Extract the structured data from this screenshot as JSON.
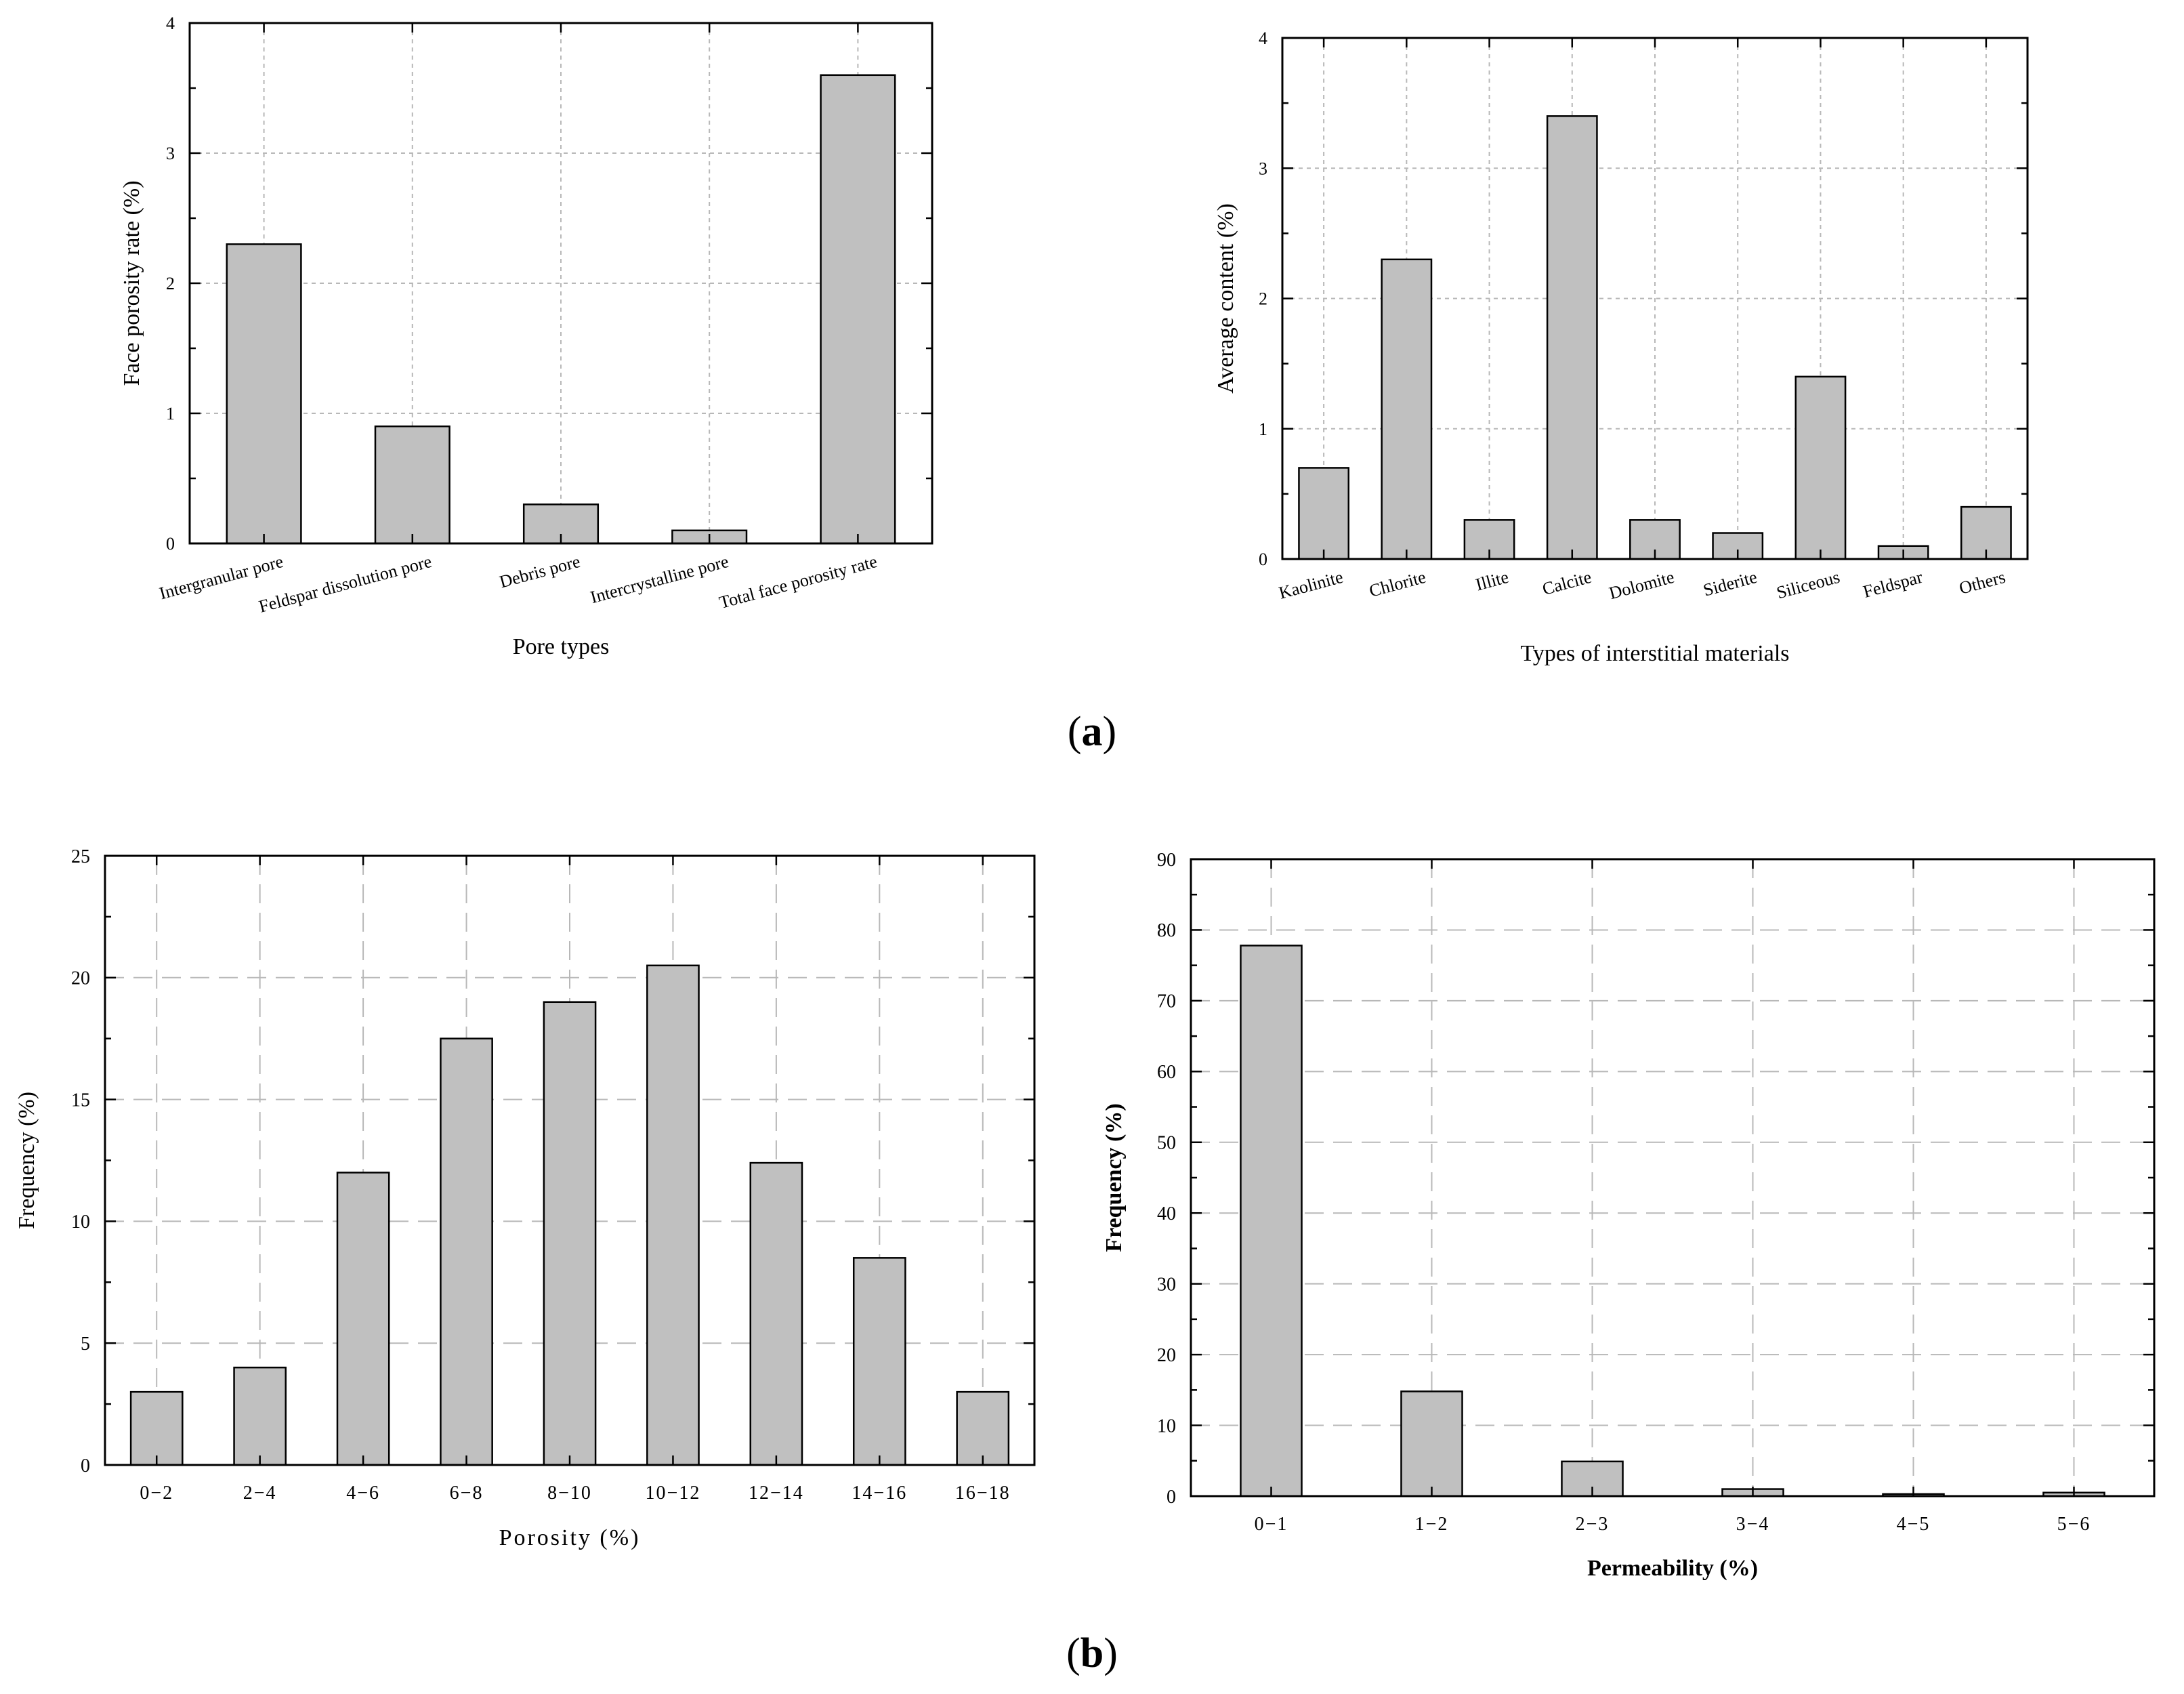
{
  "panel_labels": {
    "a": "a",
    "b": "b"
  },
  "colors": {
    "bar_fill": "#c0c0c0",
    "bar_stroke": "#000000",
    "grid": "#b8b8b8",
    "axis": "#000000"
  },
  "chart_data": [
    {
      "id": "pore-types",
      "type": "bar",
      "categories": [
        "Intergranular pore",
        "Feldspar dissolution pore",
        "Debris pore",
        "Intercrystalline pore",
        "Total face porosity rate"
      ],
      "values": [
        2.3,
        0.9,
        0.3,
        0.1,
        3.6
      ],
      "title": "",
      "xlabel": "Pore types",
      "ylabel": "Face porosity rate (%)",
      "ylim": [
        0,
        4
      ],
      "yticks": [
        0,
        1,
        2,
        3,
        4
      ],
      "grid": true
    },
    {
      "id": "interstitial",
      "type": "bar",
      "categories": [
        "Kaolinite",
        "Chlorite",
        "Illite",
        "Calcite",
        "Dolomite",
        "Siderite",
        "Siliceous",
        "Feldspar",
        "Others"
      ],
      "values": [
        0.7,
        2.3,
        0.3,
        3.4,
        0.3,
        0.2,
        1.4,
        0.1,
        0.4
      ],
      "title": "",
      "xlabel": "Types of interstitial materials",
      "ylabel": "Average content (%)",
      "ylim": [
        0,
        4
      ],
      "yticks": [
        0,
        1,
        2,
        3,
        4
      ],
      "grid": true
    },
    {
      "id": "porosity",
      "type": "bar",
      "categories": [
        "0−2",
        "2−4",
        "4−6",
        "6−8",
        "8−10",
        "10−12",
        "12−14",
        "14−16",
        "16−18"
      ],
      "values": [
        3,
        4,
        12,
        17.5,
        19,
        20.5,
        12.4,
        8.5,
        3
      ],
      "title": "",
      "xlabel": "Porosity (%)",
      "ylabel": "Frequency (%)",
      "ylim": [
        0,
        25
      ],
      "yticks": [
        0,
        5,
        10,
        15,
        20,
        25
      ],
      "grid": true
    },
    {
      "id": "permeability",
      "type": "bar",
      "categories": [
        "0−1",
        "1−2",
        "2−3",
        "3−4",
        "4−5",
        "5−6"
      ],
      "values": [
        77.8,
        14.8,
        4.9,
        1.0,
        0.3,
        0.5
      ],
      "title": "",
      "xlabel": "Permeability (%)",
      "ylabel": "Frequency (%)",
      "ylim": [
        0,
        90
      ],
      "yticks": [
        0,
        10,
        20,
        30,
        40,
        50,
        60,
        70,
        80,
        90
      ],
      "grid": true
    }
  ]
}
